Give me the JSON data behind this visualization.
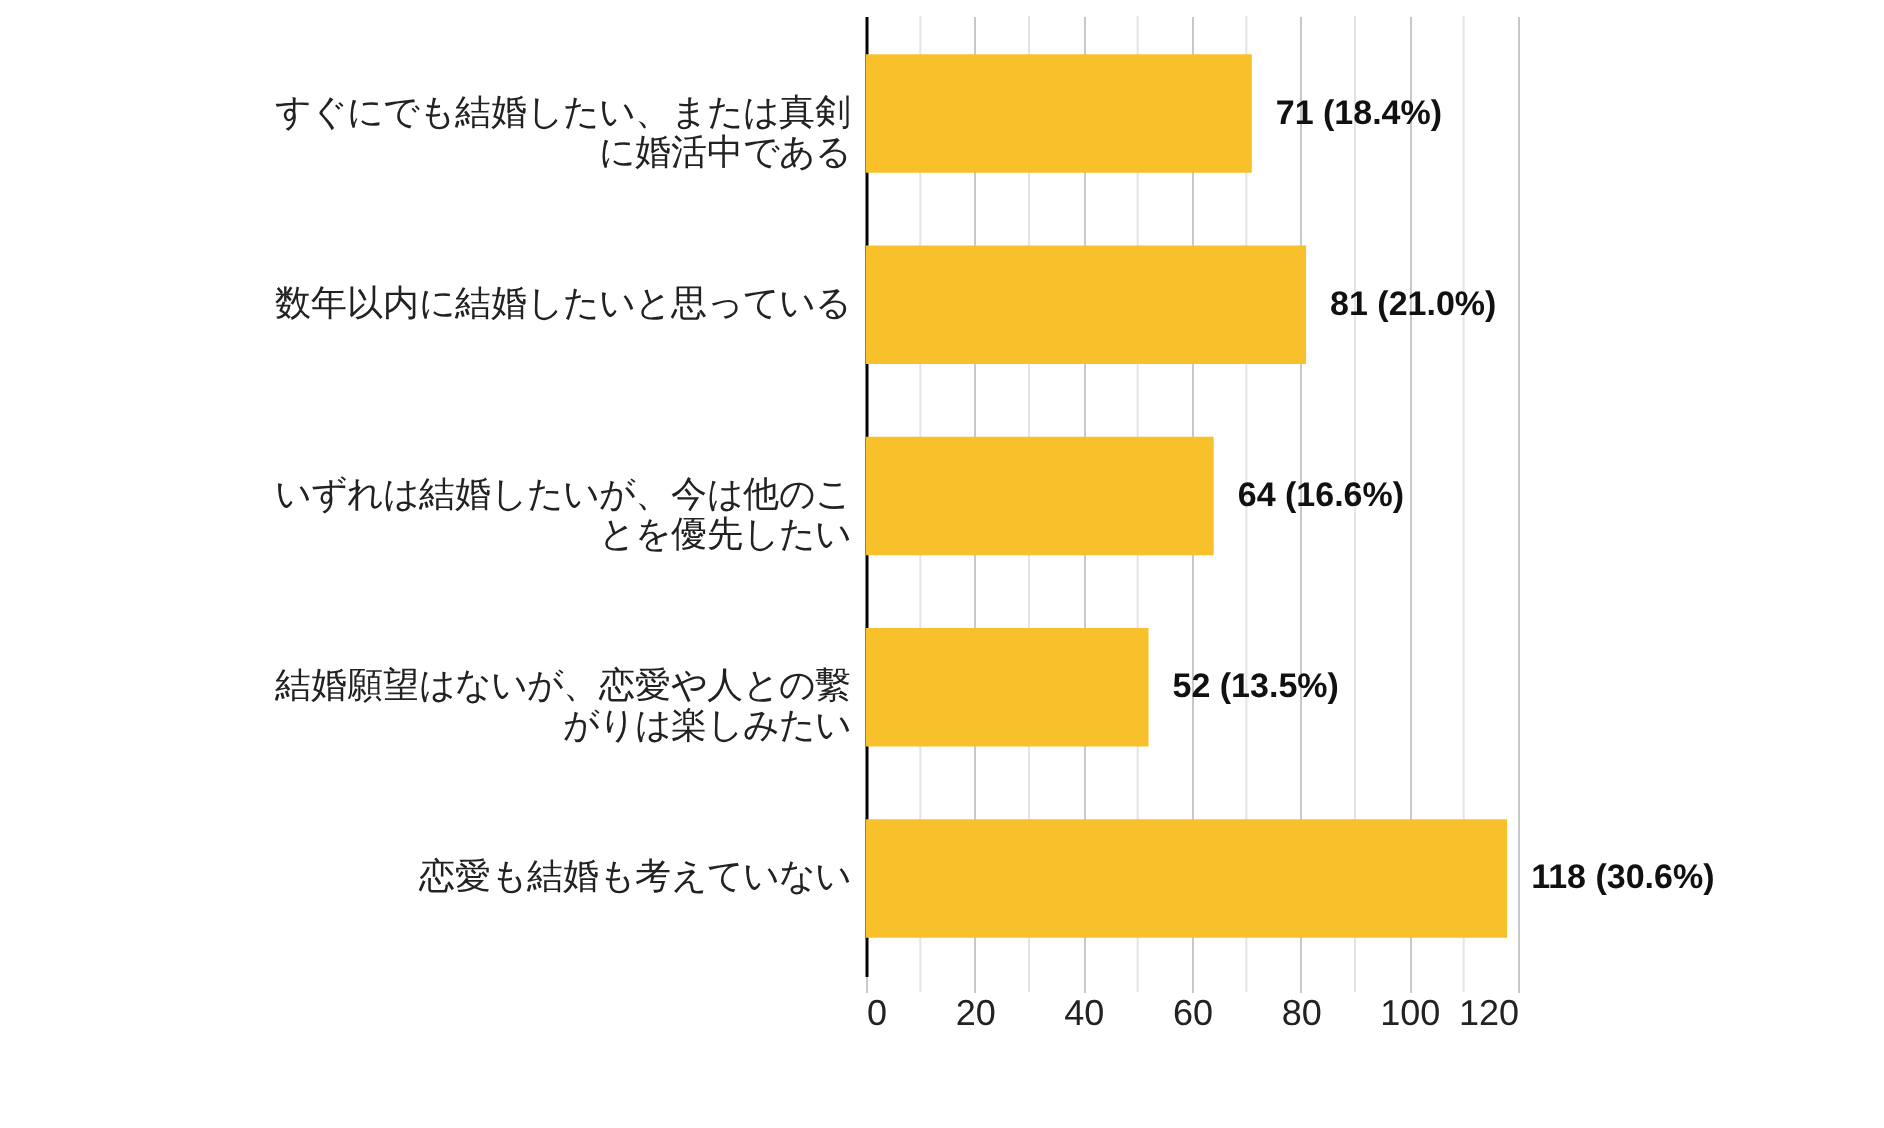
{
  "chart_data": {
    "type": "bar",
    "orientation": "horizontal",
    "categories": [
      "すぐにでも結婚したい、または真剣に婚活中である",
      "数年以内に結婚したいと思っている",
      "いずれは結婚したいが、今は他のことを優先したい",
      "結婚願望はないが、恋愛や人との繫がりは楽しみたい",
      "恋愛も結婚も考えていない"
    ],
    "values": [
      71,
      81,
      64,
      52,
      118
    ],
    "value_labels": [
      "71 (18.4%)",
      "81 (21.0%)",
      "64 (16.6%)",
      "52 (13.5%)",
      "118 (30.6%)"
    ],
    "color": "#f8c02a",
    "xlim": [
      0,
      120
    ],
    "xticks": [
      0,
      {
        "value": 10,
        "label": null
      },
      20,
      {
        "value": 30,
        "label": null
      },
      40,
      {
        "value": 50,
        "label": null
      },
      60,
      {
        "value": 70,
        "label": null
      },
      80,
      {
        "value": 90,
        "label": null
      },
      100,
      {
        "value": 110,
        "label": null
      },
      120
    ],
    "grid": "x"
  }
}
